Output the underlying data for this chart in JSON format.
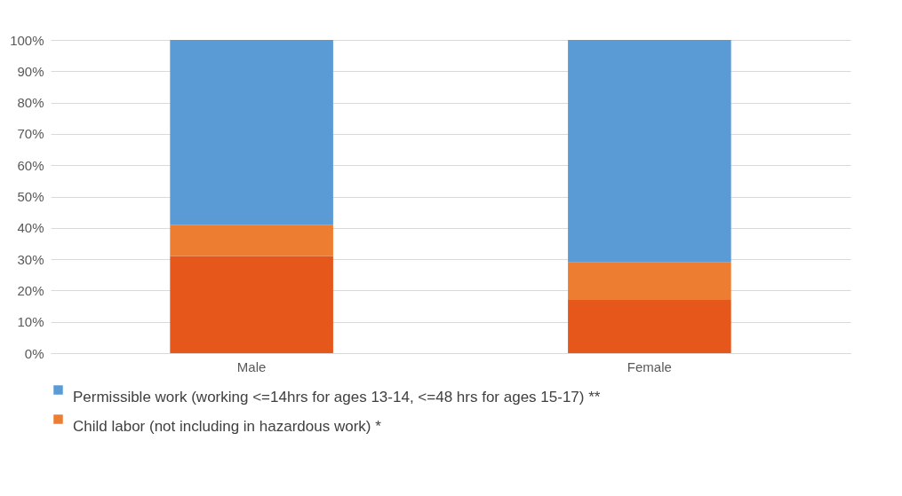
{
  "chart_data": {
    "type": "bar",
    "stacked": true,
    "categories": [
      "Male",
      "Female"
    ],
    "series": [
      {
        "color": "#e5571a",
        "values": [
          31,
          17
        ]
      },
      {
        "name": "Child labor (not including in hazardous work) *",
        "color": "#ed7d31",
        "values": [
          10,
          12
        ]
      },
      {
        "name": "Permissible work (working <=14hrs for ages 13-14, <=48 hrs for ages 15-17) **",
        "color": "#5b9bd5",
        "values": [
          59,
          71
        ]
      }
    ],
    "ylim": [
      0,
      100
    ],
    "yticks": [
      {
        "value": 0,
        "label": "0%"
      },
      {
        "value": 10,
        "label": "10%"
      },
      {
        "value": 20,
        "label": "20%"
      },
      {
        "value": 30,
        "label": "30%"
      },
      {
        "value": 40,
        "label": "40%"
      },
      {
        "value": 50,
        "label": "50%"
      },
      {
        "value": 60,
        "label": "60%"
      },
      {
        "value": 70,
        "label": "70%"
      },
      {
        "value": 80,
        "label": "80%"
      },
      {
        "value": 90,
        "label": "90%"
      },
      {
        "value": 100,
        "label": "100%"
      }
    ],
    "grid": "y",
    "legend": "bottom"
  }
}
